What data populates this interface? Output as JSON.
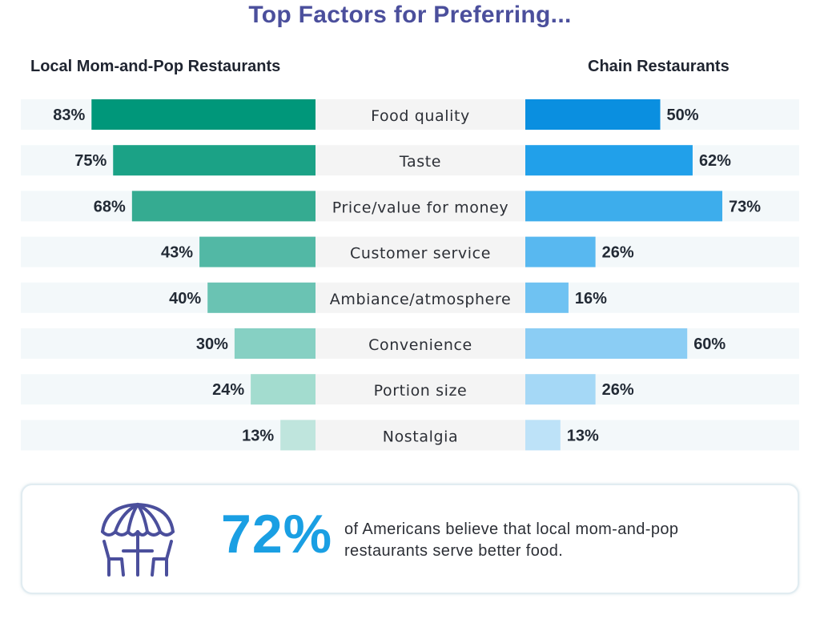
{
  "title": "Top Factors for Preferring...",
  "chart_data": {
    "type": "bar",
    "layout": "back-to-back horizontal bars",
    "categories": [
      "Food quality",
      "Taste",
      "Price/value for money",
      "Customer service",
      "Ambiance/atmosphere",
      "Convenience",
      "Portion size",
      "Nostalgia"
    ],
    "series": [
      {
        "name": "Local Mom-and-Pop Restaurants",
        "values": [
          83,
          75,
          68,
          43,
          40,
          30,
          24,
          13
        ],
        "labels": [
          "83%",
          "75%",
          "68%",
          "43%",
          "40%",
          "30%",
          "24%",
          "13%"
        ],
        "colors": [
          "#00977a",
          "#1ba286",
          "#35ab91",
          "#52b8a5",
          "#6ac3b3",
          "#86d0c3",
          "#a3dccf",
          "#bfe5dd"
        ]
      },
      {
        "name": "Chain Restaurants",
        "values": [
          50,
          62,
          73,
          26,
          16,
          60,
          26,
          13
        ],
        "labels": [
          "50%",
          "62%",
          "73%",
          "26%",
          "16%",
          "60%",
          "26%",
          "13%"
        ],
        "colors": [
          "#0a8fe0",
          "#21a0ea",
          "#3dadec",
          "#58b8f0",
          "#6fc2f2",
          "#8bcdf4",
          "#a5d8f6",
          "#bde2f8"
        ]
      }
    ],
    "xlim": [
      0,
      100
    ]
  },
  "headers": {
    "left": "Local Mom-and-Pop Restaurants",
    "right": "Chain Restaurants"
  },
  "callout": {
    "icon": "umbrella-table-icon",
    "icon_color": "#4b4f9c",
    "stat": "72%",
    "stat_color": "#1a9fe3",
    "text": "of Americans believe that local mom-and-pop restaurants serve better food."
  }
}
